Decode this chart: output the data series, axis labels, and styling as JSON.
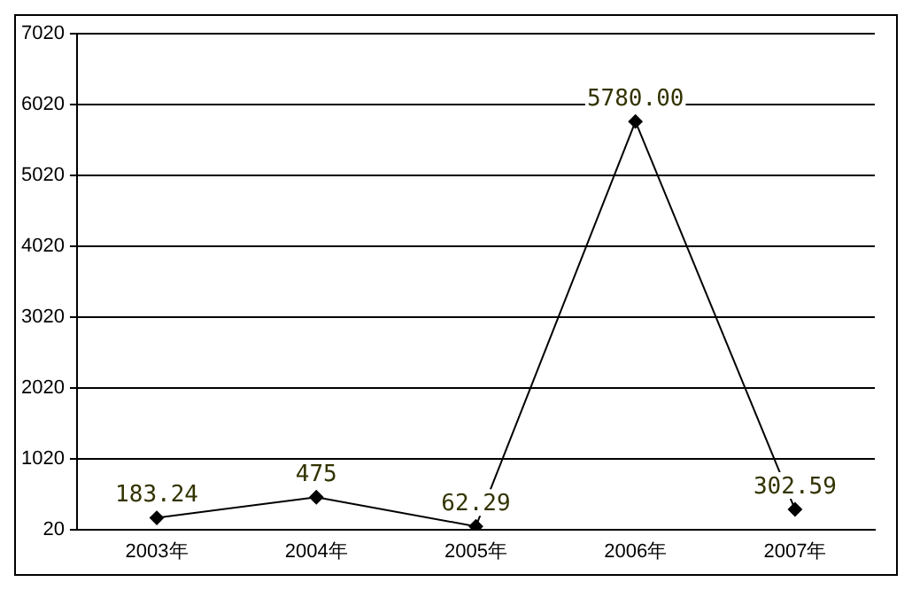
{
  "chart_data": {
    "type": "line",
    "categories": [
      "2003年",
      "2004年",
      "2005年",
      "2006年",
      "2007年"
    ],
    "series": [
      {
        "color": "#000000",
        "values": [
          183.24,
          475,
          62.29,
          5780,
          302.59
        ],
        "value_labels": [
          "183.24",
          "475",
          "62.29",
          "5780.00",
          "302.59"
        ]
      }
    ],
    "ylim": [
      20,
      7020
    ],
    "yticks": [
      20,
      1020,
      2020,
      3020,
      4020,
      5020,
      6020,
      7020
    ],
    "grid": "y",
    "legend": false,
    "marker": "diamond",
    "line_style": "solid"
  }
}
